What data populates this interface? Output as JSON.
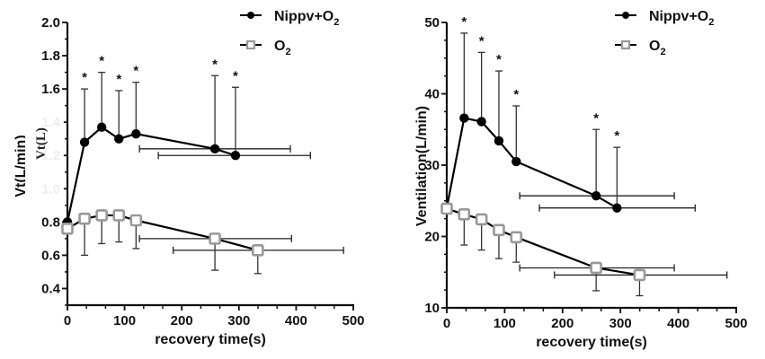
{
  "chart_data": [
    {
      "type": "line",
      "title": "",
      "xlabel": "recovery time(s)",
      "ylabel": "Vt(L/min)",
      "overlay_label": "Vt(L)",
      "xlim": [
        0,
        500
      ],
      "ylim": [
        0.3,
        2.0
      ],
      "xticks": [
        0,
        100,
        200,
        300,
        400,
        500
      ],
      "yticks": [
        0.4,
        0.6,
        0.8,
        1.0,
        1.2,
        1.4,
        1.6,
        1.8,
        2.0
      ],
      "ytick_labels": [
        "0.4",
        "0.6",
        "0.8",
        "1.0",
        "1.2",
        "1.4",
        "1.6",
        "1.8",
        "2.0"
      ],
      "hidden_ytick_labels": [
        "1.0",
        "1.2",
        "1.4"
      ],
      "legend": {
        "position": "top-right"
      },
      "series": [
        {
          "name": "Nippv+O2",
          "legend_label": "Nippv+O",
          "legend_sub": "2",
          "marker": "circle",
          "color": "#000000",
          "x": [
            0,
            30,
            60,
            90,
            120,
            258,
            294
          ],
          "y": [
            0.8,
            1.28,
            1.37,
            1.3,
            1.33,
            1.24,
            1.2
          ],
          "y_err_upper": [
            null,
            1.6,
            1.7,
            1.59,
            1.64,
            1.68,
            1.61
          ],
          "x_err": [
            null,
            null,
            null,
            null,
            null,
            [
              126,
              390
            ],
            [
              159,
              425
            ]
          ],
          "significant": [
            false,
            true,
            true,
            true,
            true,
            true,
            true
          ]
        },
        {
          "name": "O2",
          "legend_label": "O",
          "legend_sub": "2",
          "marker": "open-square",
          "color": "#999999",
          "x": [
            0,
            30,
            60,
            90,
            120,
            258,
            333
          ],
          "y": [
            0.76,
            0.82,
            0.84,
            0.84,
            0.81,
            0.7,
            0.63
          ],
          "y_err_lower": [
            null,
            0.6,
            0.67,
            0.68,
            0.64,
            0.51,
            0.49
          ],
          "x_err": [
            null,
            null,
            null,
            null,
            null,
            [
              126,
              392
            ],
            [
              185,
              483
            ]
          ]
        }
      ]
    },
    {
      "type": "line",
      "title": "",
      "xlabel": "recovery time(s)",
      "ylabel": "Ventilation(L/min)",
      "xlim": [
        0,
        500
      ],
      "ylim": [
        10,
        50
      ],
      "xticks": [
        0,
        100,
        200,
        300,
        400,
        500
      ],
      "yticks": [
        10,
        20,
        30,
        40,
        50
      ],
      "ytick_labels": [
        "10",
        "20",
        "30",
        "40",
        "50"
      ],
      "legend": {
        "position": "top-right"
      },
      "series": [
        {
          "name": "Nippv+O2",
          "legend_label": "Nippv+O",
          "legend_sub": "2",
          "marker": "circle",
          "color": "#000000",
          "x": [
            0,
            30,
            60,
            90,
            120,
            258,
            294
          ],
          "y": [
            24.0,
            36.6,
            36.1,
            33.4,
            30.5,
            25.7,
            24.0
          ],
          "y_err_upper": [
            null,
            48.5,
            45.8,
            43.2,
            38.3,
            35.0,
            32.5
          ],
          "x_err": [
            null,
            null,
            null,
            null,
            null,
            [
              126,
              393
            ],
            [
              160,
              429
            ]
          ],
          "significant": [
            false,
            true,
            true,
            true,
            true,
            true,
            true
          ]
        },
        {
          "name": "O2",
          "legend_label": "O",
          "legend_sub": "2",
          "marker": "open-square",
          "color": "#999999",
          "x": [
            0,
            30,
            60,
            90,
            120,
            258,
            333
          ],
          "y": [
            23.9,
            23.1,
            22.4,
            20.9,
            19.9,
            15.6,
            14.6
          ],
          "y_err_lower": [
            null,
            18.8,
            18.1,
            16.9,
            16.4,
            12.4,
            11.7
          ],
          "x_err": [
            null,
            null,
            null,
            null,
            null,
            [
              126,
              393
            ],
            [
              186,
              484
            ]
          ]
        }
      ]
    }
  ]
}
